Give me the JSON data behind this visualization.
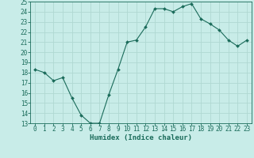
{
  "x": [
    0,
    1,
    2,
    3,
    4,
    5,
    6,
    7,
    8,
    9,
    10,
    11,
    12,
    13,
    14,
    15,
    16,
    17,
    18,
    19,
    20,
    21,
    22,
    23
  ],
  "y": [
    18.3,
    18.0,
    17.2,
    17.5,
    15.5,
    13.8,
    13.0,
    13.0,
    15.8,
    18.3,
    21.0,
    21.2,
    22.5,
    24.3,
    24.3,
    24.0,
    24.5,
    24.8,
    23.3,
    22.8,
    22.2,
    21.2,
    20.6,
    21.2
  ],
  "line_color": "#1a6b5a",
  "marker": "D",
  "marker_size": 2.0,
  "bg_color": "#c8ece8",
  "grid_color": "#b0d8d2",
  "xlabel": "Humidex (Indice chaleur)",
  "xlim": [
    -0.5,
    23.5
  ],
  "ylim": [
    13,
    25
  ],
  "yticks": [
    13,
    14,
    15,
    16,
    17,
    18,
    19,
    20,
    21,
    22,
    23,
    24,
    25
  ],
  "xticks": [
    0,
    1,
    2,
    3,
    4,
    5,
    6,
    7,
    8,
    9,
    10,
    11,
    12,
    13,
    14,
    15,
    16,
    17,
    18,
    19,
    20,
    21,
    22,
    23
  ],
  "tick_label_color": "#1a6b5a",
  "tick_label_size": 5.5,
  "xlabel_size": 6.5,
  "xlabel_color": "#1a6b5a"
}
